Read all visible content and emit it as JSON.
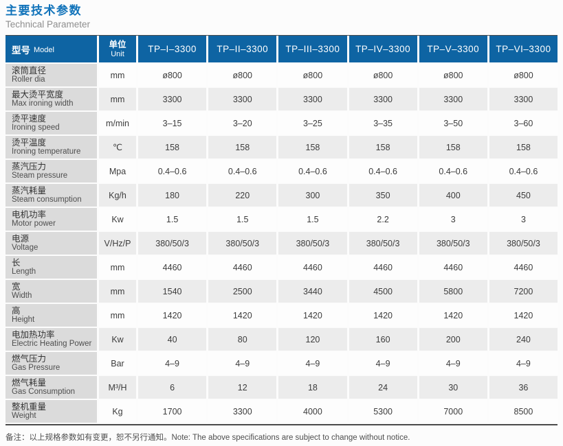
{
  "page": {
    "title": "主要技术参数",
    "subtitle": "Technical Parameter",
    "note": "备注：以上规格参数如有变更，恕不另行通知。Note: The above specifications are subject to change without notice."
  },
  "table": {
    "header": {
      "model_label_cn": "型号",
      "model_label_en": "Model",
      "unit_label_cn": "单位",
      "unit_label_en": "Unit",
      "models": [
        "TP–I–3300",
        "TP–II–3300",
        "TP–III–3300",
        "TP–IV–3300",
        "TP–V–3300",
        "TP–VI–3300"
      ]
    },
    "rows": [
      {
        "cn": "滚筒直径",
        "en": "Roller dia",
        "unit": "mm",
        "values": [
          "ø800",
          "ø800",
          "ø800",
          "ø800",
          "ø800",
          "ø800"
        ]
      },
      {
        "cn": "最大烫平宽度",
        "en": "Max ironing width",
        "unit": "mm",
        "values": [
          "3300",
          "3300",
          "3300",
          "3300",
          "3300",
          "3300"
        ]
      },
      {
        "cn": "烫平速度",
        "en": "Ironing speed",
        "unit": "m/min",
        "values": [
          "3–15",
          "3–20",
          "3–25",
          "3–35",
          "3–50",
          "3–60"
        ]
      },
      {
        "cn": "烫平温度",
        "en": "Ironing temperature",
        "unit": "℃",
        "values": [
          "158",
          "158",
          "158",
          "158",
          "158",
          "158"
        ]
      },
      {
        "cn": "蒸汽压力",
        "en": "Steam pressure",
        "unit": "Mpa",
        "values": [
          "0.4–0.6",
          "0.4–0.6",
          "0.4–0.6",
          "0.4–0.6",
          "0.4–0.6",
          "0.4–0.6"
        ]
      },
      {
        "cn": "蒸汽耗量",
        "en": "Steam consumption",
        "unit": "Kg/h",
        "values": [
          "180",
          "220",
          "300",
          "350",
          "400",
          "450"
        ]
      },
      {
        "cn": "电机功率",
        "en": "Motor power",
        "unit": "Kw",
        "values": [
          "1.5",
          "1.5",
          "1.5",
          "2.2",
          "3",
          "3"
        ]
      },
      {
        "cn": "电源",
        "en": "Voltage",
        "unit": "V/Hz/P",
        "values": [
          "380/50/3",
          "380/50/3",
          "380/50/3",
          "380/50/3",
          "380/50/3",
          "380/50/3"
        ]
      },
      {
        "cn": "长",
        "en": "Length",
        "unit": "mm",
        "values": [
          "4460",
          "4460",
          "4460",
          "4460",
          "4460",
          "4460"
        ]
      },
      {
        "cn": "宽",
        "en": "Width",
        "unit": "mm",
        "values": [
          "1540",
          "2500",
          "3440",
          "4500",
          "5800",
          "7200"
        ]
      },
      {
        "cn": "高",
        "en": "Height",
        "unit": "mm",
        "values": [
          "1420",
          "1420",
          "1420",
          "1420",
          "1420",
          "1420"
        ]
      },
      {
        "cn": "电加热功率",
        "en": "Electric Heating Power",
        "unit": "Kw",
        "values": [
          "40",
          "80",
          "120",
          "160",
          "200",
          "240"
        ]
      },
      {
        "cn": "燃气压力",
        "en": "Gas Pressure",
        "unit": "Bar",
        "values": [
          "4–9",
          "4–9",
          "4–9",
          "4–9",
          "4–9",
          "4–9"
        ]
      },
      {
        "cn": "燃气耗量",
        "en": "Gas Consumption",
        "unit": "M³/H",
        "values": [
          "6",
          "12",
          "18",
          "24",
          "30",
          "36"
        ]
      },
      {
        "cn": "整机重量",
        "en": "Weight",
        "unit": "Kg",
        "values": [
          "1700",
          "3300",
          "4000",
          "5300",
          "7000",
          "8500"
        ]
      }
    ]
  },
  "colors": {
    "header_blue": "#0e64a3",
    "title_blue": "#1173ba",
    "label_bg": "#dbdbdb",
    "alt_row_bg": "#ececec"
  }
}
